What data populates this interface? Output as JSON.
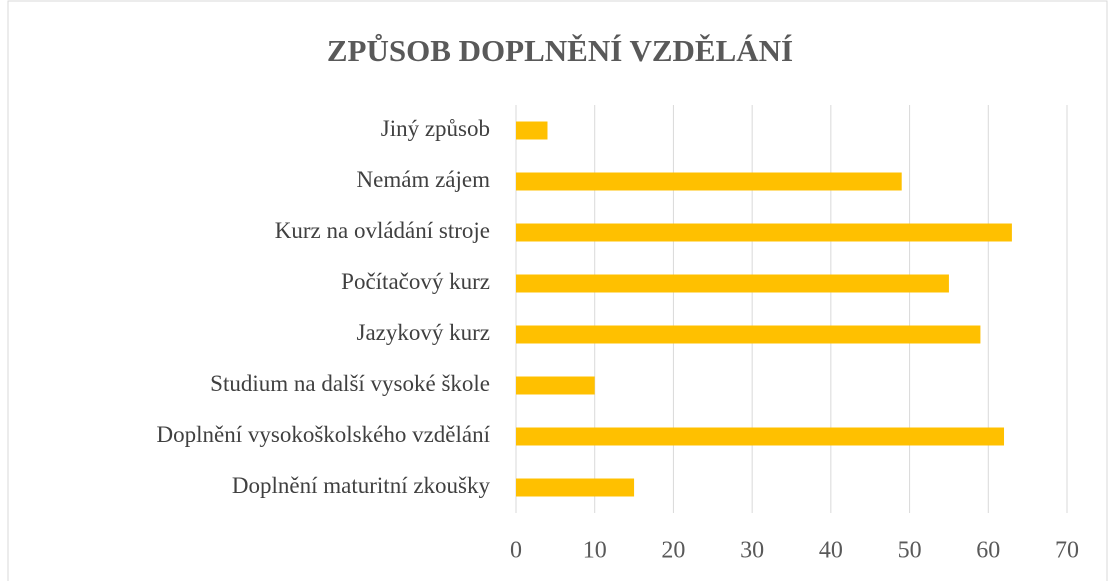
{
  "chart_data": {
    "type": "bar",
    "orientation": "horizontal",
    "title": "ZPŮSOB DOPLNĚNÍ VZDĚLÁNÍ",
    "categories": [
      "Jiný způsob",
      "Nemám zájem",
      "Kurz na ovládání stroje",
      "Počítačový kurz",
      "Jazykový kurz",
      "Studium na další vysoké škole",
      "Doplnění vysokoškolského vzdělání",
      "Doplnění maturitní zkoušky"
    ],
    "values": [
      4,
      49,
      63,
      55,
      59,
      10,
      62,
      15
    ],
    "color": "#ffc000",
    "xlim": [
      0,
      70
    ],
    "xticks": [
      0,
      10,
      20,
      30,
      40,
      50,
      60,
      70
    ],
    "grid": true
  }
}
